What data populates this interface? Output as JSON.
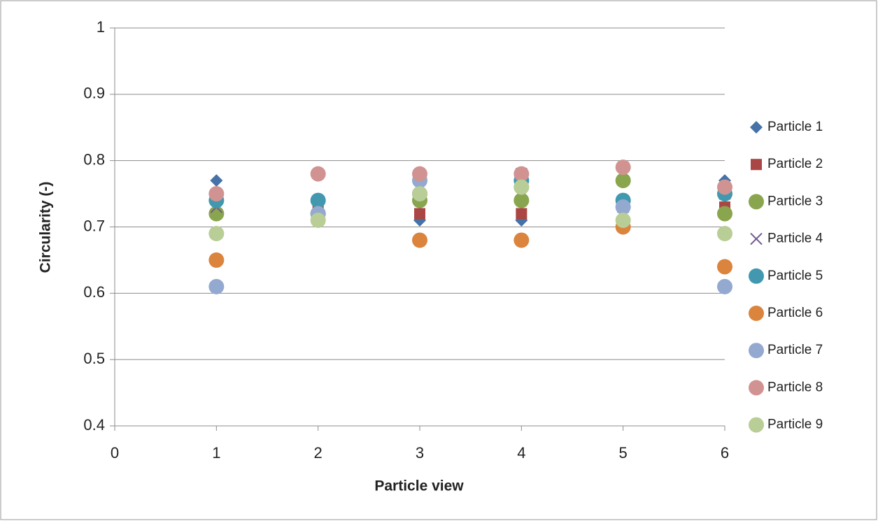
{
  "chart_data": {
    "type": "scatter",
    "x_label": "Particle view",
    "y_label": "Circularity (-)",
    "x": [
      1,
      2,
      3,
      4,
      5,
      6
    ],
    "xlim": [
      0,
      6
    ],
    "xticks": [
      0,
      1,
      2,
      3,
      4,
      5,
      6
    ],
    "ylim": [
      0.4,
      1
    ],
    "yticks": [
      0.4,
      0.5,
      0.6,
      0.7,
      0.8,
      0.9,
      1
    ],
    "grid": true,
    "legend": "right",
    "series": [
      {
        "name": "Particle 1",
        "color": "#4572a7",
        "marker": "diamond",
        "values": [
          0.77,
          0.72,
          0.71,
          0.71,
          0.73,
          0.77
        ]
      },
      {
        "name": "Particle 2",
        "color": "#aa4643",
        "marker": "square",
        "values": [
          0.72,
          0.73,
          0.72,
          0.72,
          0.73,
          0.73
        ]
      },
      {
        "name": "Particle 3",
        "color": "#89a54e",
        "marker": "circle",
        "values": [
          0.72,
          0.72,
          0.74,
          0.74,
          0.77,
          0.72
        ]
      },
      {
        "name": "Particle 4",
        "color": "#71588f",
        "marker": "x",
        "values": [
          0.73,
          0.73,
          0.76,
          0.78,
          0.73,
          0.75
        ]
      },
      {
        "name": "Particle 5",
        "color": "#4198af",
        "marker": "circle",
        "values": [
          0.74,
          0.74,
          0.75,
          0.77,
          0.74,
          0.75
        ]
      },
      {
        "name": "Particle 6",
        "color": "#db843d",
        "marker": "circle",
        "values": [
          0.65,
          0.72,
          0.68,
          0.68,
          0.7,
          0.64
        ]
      },
      {
        "name": "Particle 7",
        "color": "#93a9cf",
        "marker": "circle",
        "values": [
          0.61,
          0.72,
          0.77,
          0.76,
          0.73,
          0.61
        ]
      },
      {
        "name": "Particle 8",
        "color": "#d19392",
        "marker": "circle",
        "values": [
          0.75,
          0.78,
          0.78,
          0.78,
          0.79,
          0.76
        ]
      },
      {
        "name": "Particle 9",
        "color": "#b9cd96",
        "marker": "circle",
        "values": [
          0.69,
          0.71,
          0.75,
          0.76,
          0.71,
          0.69
        ]
      }
    ]
  }
}
